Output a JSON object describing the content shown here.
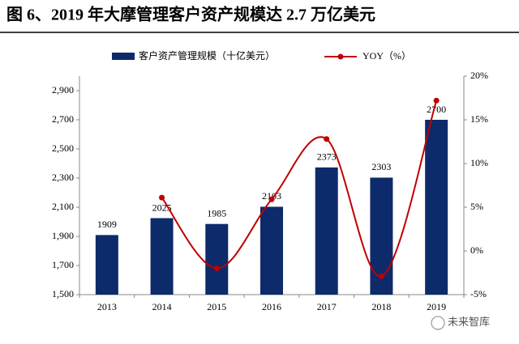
{
  "chart_data": {
    "type": "bar_line",
    "title": "图 6、2019 年大摩管理客户资产规模达 2.7 万亿美元",
    "categories": [
      "2013",
      "2014",
      "2015",
      "2016",
      "2017",
      "2018",
      "2019"
    ],
    "series": [
      {
        "name": "客户资产管理规模（十亿美元）",
        "color": "#0d2a6b",
        "type": "bar",
        "values": [
          1909,
          2025,
          1985,
          2103,
          2373,
          2303,
          2700
        ]
      },
      {
        "name": "YOY（%）",
        "color": "#c00000",
        "type": "line",
        "axis": "y2",
        "values": [
          null,
          6.1,
          -2.0,
          5.9,
          12.8,
          -2.9,
          17.2
        ]
      }
    ],
    "ylim": [
      1500,
      3000
    ],
    "yticks": [
      {
        "value": 1500,
        "label": "1,500"
      },
      {
        "value": 1700,
        "label": "1,700"
      },
      {
        "value": 1900,
        "label": "1,900"
      },
      {
        "value": 2100,
        "label": "2,100"
      },
      {
        "value": 2300,
        "label": "2,300"
      },
      {
        "value": 2500,
        "label": "2,500"
      },
      {
        "value": 2700,
        "label": "2,700"
      },
      {
        "value": 2900,
        "label": "2,900"
      }
    ],
    "y2lim": [
      -5,
      20
    ],
    "y2ticks": [
      {
        "value": -5,
        "label": "-5%"
      },
      {
        "value": 0,
        "label": "0%"
      },
      {
        "value": 5,
        "label": "5%"
      },
      {
        "value": 10,
        "label": "10%"
      },
      {
        "value": 15,
        "label": "15%"
      },
      {
        "value": 20,
        "label": "20%"
      }
    ],
    "legend": "top",
    "watermark": "未来智库"
  }
}
